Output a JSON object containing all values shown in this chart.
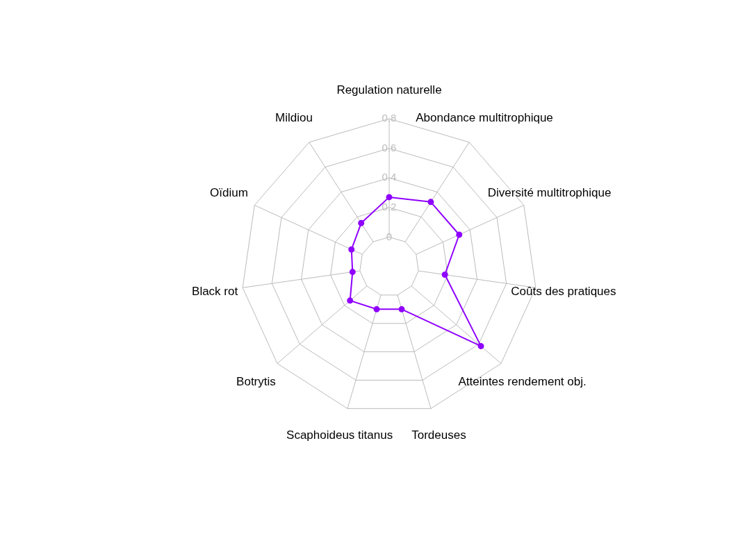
{
  "chart_data": {
    "type": "radar",
    "categories": [
      "Regulation naturelle",
      "Abondance multitrophique",
      "Diversité multitrophique",
      "Coûts des pratiques",
      "Atteintes rendement obj.",
      "Tordeuses",
      "Scaphoideus titanus",
      "Botrytis",
      "Black rot",
      "Oïdium",
      "Mildiou"
    ],
    "series": [
      {
        "color": "#8f00ff",
        "values": [
          0.27,
          0.32,
          0.32,
          0.18,
          0.62,
          0.1,
          0.1,
          0.15,
          0.05,
          0.08,
          0.15
        ]
      }
    ],
    "ylim": [
      -0.2,
      0.8
    ],
    "yticks": [
      0,
      0.2,
      0.4,
      0.6,
      0.8
    ],
    "grid": true,
    "legend": false,
    "marker": "circle",
    "line_style": "solid"
  }
}
